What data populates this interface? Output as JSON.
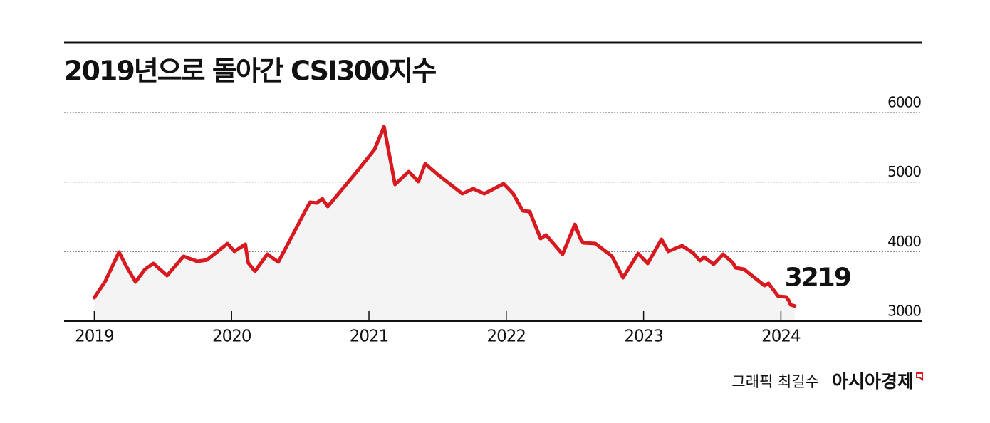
{
  "chart_data": {
    "type": "line",
    "title": "2019년으로 돌아간 CSI300지수",
    "x": [
      2019.0,
      2019.08,
      2019.18,
      2019.23,
      2019.3,
      2019.37,
      2019.43,
      2019.53,
      2019.65,
      2019.75,
      2019.82,
      2019.97,
      2020.02,
      2020.1,
      2020.12,
      2020.17,
      2020.26,
      2020.34,
      2020.57,
      2020.62,
      2020.66,
      2020.7,
      2020.9,
      2021.04,
      2021.11,
      2021.19,
      2021.29,
      2021.36,
      2021.41,
      2021.5,
      2021.68,
      2021.76,
      2021.84,
      2021.98,
      2022.05,
      2022.12,
      2022.17,
      2022.25,
      2022.29,
      2022.41,
      2022.5,
      2022.54,
      2022.56,
      2022.65,
      2022.77,
      2022.85,
      2022.96,
      2023.03,
      2023.13,
      2023.18,
      2023.28,
      2023.36,
      2023.41,
      2023.44,
      2023.51,
      2023.58,
      2023.65,
      2023.67,
      2023.73,
      2023.88,
      2023.91,
      2023.98,
      2024.04,
      2024.06,
      2024.07,
      2024.1
    ],
    "series": [
      {
        "color": "#d71920",
        "values": [
          3338,
          3573,
          3993,
          3799,
          3563,
          3747,
          3829,
          3655,
          3932,
          3860,
          3880,
          4116,
          4003,
          4106,
          3840,
          3717,
          3962,
          3850,
          4710,
          4700,
          4761,
          4648,
          5119,
          5467,
          5795,
          4966,
          5150,
          5007,
          5263,
          5109,
          4833,
          4904,
          4833,
          4976,
          4833,
          4587,
          4577,
          4188,
          4239,
          3962,
          4392,
          4188,
          4126,
          4116,
          3932,
          3625,
          3973,
          3829,
          4177,
          4003,
          4085,
          3983,
          3870,
          3921,
          3819,
          3962,
          3840,
          3768,
          3747,
          3512,
          3543,
          3358,
          3348,
          3287,
          3235,
          3219
        ]
      }
    ],
    "xlim": [
      2018.78,
      2025.03
    ],
    "xticks": [
      2019,
      2020,
      2021,
      2022,
      2023,
      2024
    ],
    "ylim": [
      3000,
      6000
    ],
    "yticks": [
      3000,
      4000,
      5000,
      6000
    ],
    "grid": true,
    "area_color": "#f4f4f4"
  },
  "credit": {
    "graphic": "그래픽 최길수",
    "publisher": "아시아경제"
  }
}
